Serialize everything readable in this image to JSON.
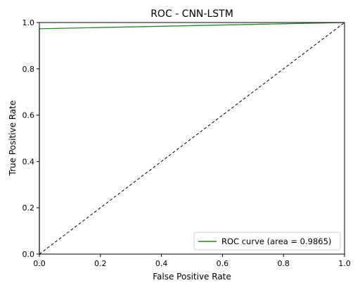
{
  "chart_data": {
    "type": "line",
    "title": "ROC - CNN-LSTM",
    "xlabel": "False Positive Rate",
    "ylabel": "True Positive Rate",
    "xlim": [
      0.0,
      1.0
    ],
    "ylim": [
      0.0,
      1.0
    ],
    "xticks": [
      "0.0",
      "0.2",
      "0.4",
      "0.6",
      "0.8",
      "1.0"
    ],
    "yticks": [
      "0.0",
      "0.2",
      "0.4",
      "0.6",
      "0.8",
      "1.0"
    ],
    "grid": false,
    "legend_position": "lower right",
    "series": [
      {
        "name": "ROC curve (area = 0.9865)",
        "color": "#228B22",
        "style": "solid",
        "x": [
          0.0,
          0.0,
          1.0
        ],
        "y": [
          0.0,
          0.973,
          1.0
        ]
      }
    ],
    "reference_line": {
      "color": "#000000",
      "style": "dashed",
      "x": [
        0.0,
        1.0
      ],
      "y": [
        0.0,
        1.0
      ]
    }
  }
}
